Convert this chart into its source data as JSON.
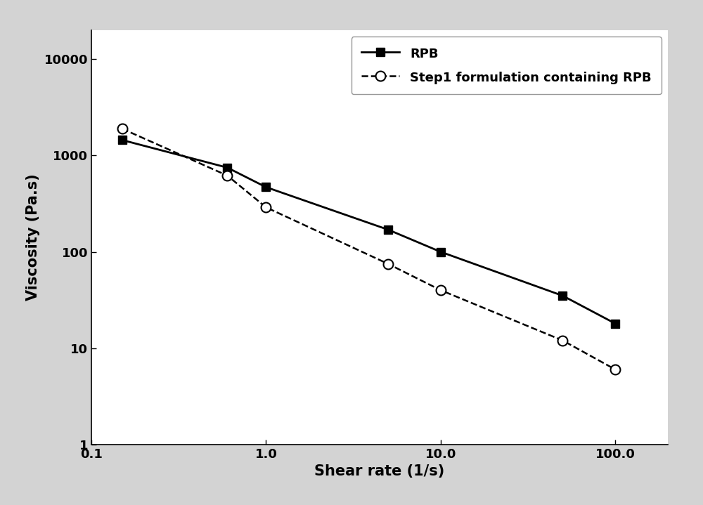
{
  "rpb_x": [
    0.15,
    0.6,
    1.0,
    5.0,
    10.0,
    50.0,
    100.0
  ],
  "rpb_y": [
    1450,
    750,
    470,
    170,
    100,
    35,
    18
  ],
  "step1_x": [
    0.15,
    0.6,
    1.0,
    5.0,
    10.0,
    50.0,
    100.0
  ],
  "step1_y": [
    1900,
    620,
    290,
    75,
    40,
    12,
    6
  ],
  "rpb_label": "RPB",
  "step1_label": "Step1 formulation containing RPB",
  "xlabel": "Shear rate (1/s)",
  "ylabel": "Viscosity (Pa.s)",
  "xlim": [
    0.1,
    200.0
  ],
  "ylim": [
    1,
    20000
  ],
  "line_color": "#000000",
  "bg_color": "#ffffff",
  "outer_bg": "#d3d3d3",
  "legend_fontsize": 13,
  "axis_fontsize": 15,
  "tick_fontsize": 13,
  "xticks": [
    0.1,
    1.0,
    10.0,
    100.0
  ],
  "xtick_labels": [
    "0.1",
    "1.0",
    "10.0",
    "100.0"
  ],
  "yticks": [
    1,
    10,
    100,
    1000,
    10000
  ],
  "ytick_labels": [
    "1",
    "10",
    "100",
    "1000",
    "10000"
  ]
}
